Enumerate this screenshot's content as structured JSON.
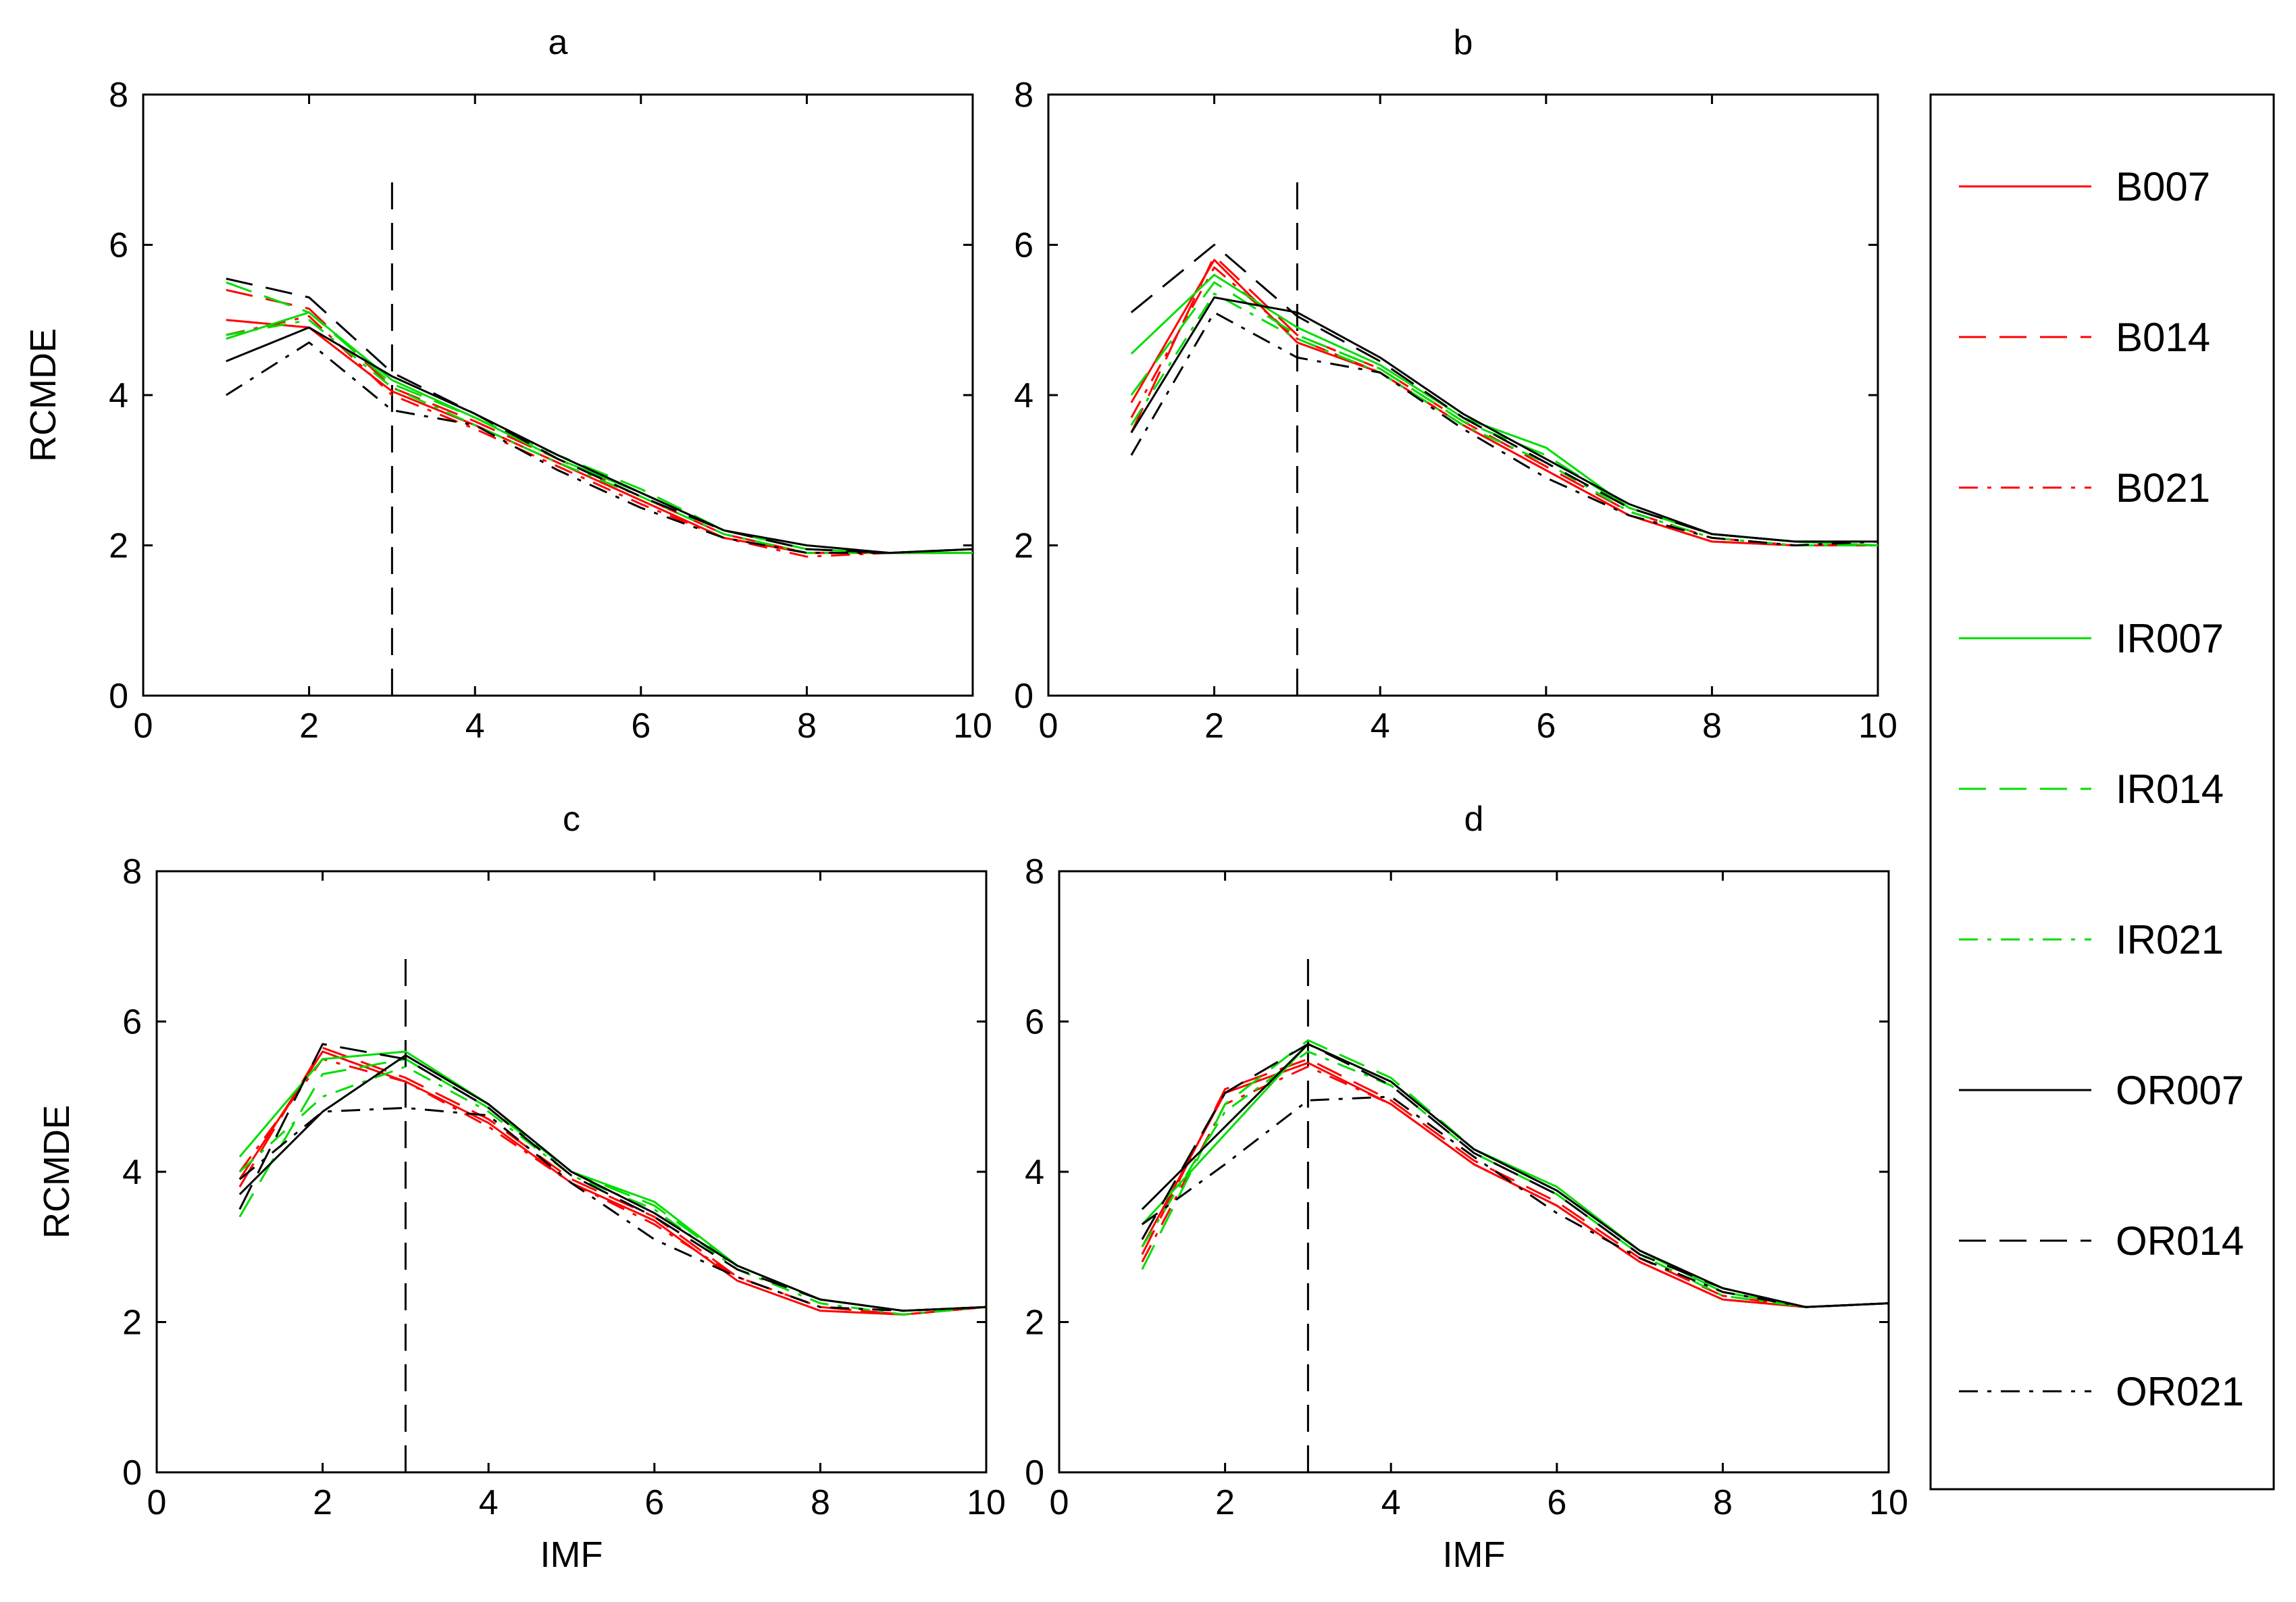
{
  "legend": {
    "position": "right",
    "entries": [
      {
        "name": "B007",
        "color": "#ff0000",
        "dash": "solid"
      },
      {
        "name": "B014",
        "color": "#ff0000",
        "dash": "dashed"
      },
      {
        "name": "B021",
        "color": "#ff0000",
        "dash": "dashdot"
      },
      {
        "name": "IR007",
        "color": "#00dd00",
        "dash": "solid"
      },
      {
        "name": "IR014",
        "color": "#00dd00",
        "dash": "dashed"
      },
      {
        "name": "IR021",
        "color": "#00dd00",
        "dash": "dashdot"
      },
      {
        "name": "OR007",
        "color": "#000000",
        "dash": "solid"
      },
      {
        "name": "OR014",
        "color": "#000000",
        "dash": "dashed"
      },
      {
        "name": "OR021",
        "color": "#000000",
        "dash": "dashdot"
      }
    ]
  },
  "chart_data": [
    {
      "type": "line",
      "title": "a",
      "xlabel": "",
      "ylabel": "RCMDE",
      "xlim": [
        0,
        10
      ],
      "ylim": [
        0,
        8
      ],
      "xticks": [
        0,
        2,
        4,
        6,
        8,
        10
      ],
      "yticks": [
        0,
        2,
        4,
        6,
        8
      ],
      "grid": false,
      "marker_line": {
        "x": 3,
        "y_range": [
          0,
          7
        ],
        "style": "dashed"
      },
      "x": [
        1,
        2,
        3,
        4,
        5,
        6,
        7,
        8,
        9,
        10
      ],
      "series": [
        {
          "name": "B007",
          "values": [
            5.0,
            4.9,
            4.05,
            3.6,
            3.1,
            2.6,
            2.1,
            1.9,
            1.9,
            1.9
          ]
        },
        {
          "name": "B014",
          "values": [
            5.4,
            5.15,
            4.1,
            3.65,
            3.15,
            2.65,
            2.15,
            1.9,
            1.9,
            1.9
          ]
        },
        {
          "name": "B021",
          "values": [
            4.8,
            5.05,
            4.0,
            3.55,
            3.05,
            2.55,
            2.1,
            1.85,
            1.9,
            1.9
          ]
        },
        {
          "name": "IR007",
          "values": [
            4.75,
            5.1,
            4.2,
            3.7,
            3.15,
            2.7,
            2.2,
            1.95,
            1.9,
            1.9
          ]
        },
        {
          "name": "IR014",
          "values": [
            5.5,
            5.1,
            4.15,
            3.7,
            3.2,
            2.75,
            2.2,
            1.95,
            1.9,
            1.9
          ]
        },
        {
          "name": "IR021",
          "values": [
            4.8,
            5.0,
            4.1,
            3.6,
            3.1,
            2.65,
            2.15,
            1.9,
            1.9,
            1.9
          ]
        },
        {
          "name": "OR007",
          "values": [
            4.45,
            4.9,
            4.25,
            3.75,
            3.2,
            2.7,
            2.2,
            2.0,
            1.9,
            1.95
          ]
        },
        {
          "name": "OR014",
          "values": [
            5.55,
            5.3,
            4.3,
            3.75,
            3.15,
            2.65,
            2.2,
            1.95,
            1.9,
            1.95
          ]
        },
        {
          "name": "OR021",
          "values": [
            4.0,
            4.7,
            3.8,
            3.6,
            3.0,
            2.5,
            2.1,
            1.9,
            1.9,
            1.95
          ]
        }
      ]
    },
    {
      "type": "line",
      "title": "b",
      "xlabel": "",
      "ylabel": "",
      "xlim": [
        0,
        10
      ],
      "ylim": [
        0,
        8
      ],
      "xticks": [
        0,
        2,
        4,
        6,
        8,
        10
      ],
      "yticks": [
        0,
        2,
        4,
        6,
        8
      ],
      "grid": false,
      "marker_line": {
        "x": 3,
        "y_range": [
          0,
          7
        ],
        "style": "dashed"
      },
      "x": [
        1,
        2,
        3,
        4,
        5,
        6,
        7,
        8,
        9,
        10
      ],
      "series": [
        {
          "name": "B007",
          "values": [
            3.9,
            5.8,
            4.7,
            4.3,
            3.6,
            3.0,
            2.4,
            2.05,
            2.0,
            2.0
          ]
        },
        {
          "name": "B014",
          "values": [
            3.5,
            5.85,
            4.8,
            4.35,
            3.65,
            3.05,
            2.45,
            2.1,
            2.0,
            2.0
          ]
        },
        {
          "name": "B021",
          "values": [
            3.7,
            5.7,
            4.75,
            4.3,
            3.6,
            3.0,
            2.4,
            2.05,
            2.0,
            2.0
          ]
        },
        {
          "name": "IR007",
          "values": [
            4.55,
            5.6,
            4.9,
            4.4,
            3.7,
            3.3,
            2.5,
            2.15,
            2.05,
            2.0
          ]
        },
        {
          "name": "IR014",
          "values": [
            4.0,
            5.5,
            4.8,
            4.35,
            3.65,
            3.2,
            2.5,
            2.15,
            2.05,
            2.0
          ]
        },
        {
          "name": "IR021",
          "values": [
            3.6,
            5.35,
            4.75,
            4.3,
            3.6,
            3.1,
            2.45,
            2.1,
            2.0,
            2.0
          ]
        },
        {
          "name": "OR007",
          "values": [
            3.5,
            5.3,
            5.1,
            4.5,
            3.75,
            3.15,
            2.55,
            2.15,
            2.05,
            2.05
          ]
        },
        {
          "name": "OR014",
          "values": [
            5.1,
            6.0,
            5.05,
            4.45,
            3.7,
            3.1,
            2.5,
            2.15,
            2.05,
            2.05
          ]
        },
        {
          "name": "OR021",
          "values": [
            3.2,
            5.1,
            4.5,
            4.3,
            3.55,
            2.9,
            2.4,
            2.1,
            2.0,
            2.05
          ]
        }
      ]
    },
    {
      "type": "line",
      "title": "c",
      "xlabel": "IMF",
      "ylabel": "RCMDE",
      "xlim": [
        0,
        10
      ],
      "ylim": [
        0,
        8
      ],
      "xticks": [
        0,
        2,
        4,
        6,
        8,
        10
      ],
      "yticks": [
        0,
        2,
        4,
        6,
        8
      ],
      "grid": false,
      "marker_line": {
        "x": 3,
        "y_range": [
          0,
          7
        ],
        "style": "dashed"
      },
      "x": [
        1,
        2,
        3,
        4,
        5,
        6,
        7,
        8,
        9,
        10
      ],
      "series": [
        {
          "name": "B007",
          "values": [
            3.9,
            5.6,
            5.2,
            4.65,
            3.85,
            3.35,
            2.55,
            2.15,
            2.1,
            2.2
          ]
        },
        {
          "name": "B014",
          "values": [
            3.8,
            5.65,
            5.25,
            4.7,
            3.9,
            3.4,
            2.6,
            2.2,
            2.1,
            2.2
          ]
        },
        {
          "name": "B021",
          "values": [
            4.0,
            5.5,
            5.2,
            4.6,
            3.85,
            3.3,
            2.6,
            2.2,
            2.1,
            2.2
          ]
        },
        {
          "name": "IR007",
          "values": [
            4.2,
            5.5,
            5.6,
            4.9,
            4.0,
            3.6,
            2.75,
            2.3,
            2.15,
            2.2
          ]
        },
        {
          "name": "IR014",
          "values": [
            3.4,
            5.3,
            5.5,
            4.85,
            4.0,
            3.55,
            2.75,
            2.3,
            2.15,
            2.2
          ]
        },
        {
          "name": "IR021",
          "values": [
            4.0,
            5.0,
            5.4,
            4.8,
            3.95,
            3.5,
            2.7,
            2.25,
            2.1,
            2.2
          ]
        },
        {
          "name": "OR007",
          "values": [
            3.7,
            4.8,
            5.55,
            4.9,
            4.0,
            3.45,
            2.75,
            2.3,
            2.15,
            2.2
          ]
        },
        {
          "name": "OR014",
          "values": [
            3.5,
            5.7,
            5.5,
            4.85,
            3.95,
            3.4,
            2.7,
            2.3,
            2.15,
            2.2
          ]
        },
        {
          "name": "OR021",
          "values": [
            3.9,
            4.8,
            4.85,
            4.75,
            3.85,
            3.1,
            2.6,
            2.2,
            2.15,
            2.2
          ]
        }
      ]
    },
    {
      "type": "line",
      "title": "d",
      "xlabel": "IMF",
      "ylabel": "",
      "xlim": [
        0,
        10
      ],
      "ylim": [
        0,
        8
      ],
      "xticks": [
        0,
        2,
        4,
        6,
        8,
        10
      ],
      "yticks": [
        0,
        2,
        4,
        6,
        8
      ],
      "grid": false,
      "marker_line": {
        "x": 3,
        "y_range": [
          0,
          7
        ],
        "style": "dashed"
      },
      "x": [
        1,
        2,
        3,
        4,
        5,
        6,
        7,
        8,
        9,
        10
      ],
      "series": [
        {
          "name": "B007",
          "values": [
            3.0,
            5.05,
            5.45,
            4.9,
            4.1,
            3.55,
            2.8,
            2.3,
            2.2,
            2.25
          ]
        },
        {
          "name": "B014",
          "values": [
            2.9,
            5.1,
            5.5,
            4.95,
            4.15,
            3.6,
            2.85,
            2.35,
            2.2,
            2.25
          ]
        },
        {
          "name": "B021",
          "values": [
            2.8,
            4.9,
            5.4,
            4.9,
            4.1,
            3.55,
            2.8,
            2.3,
            2.2,
            2.25
          ]
        },
        {
          "name": "IR007",
          "values": [
            3.3,
            4.5,
            5.7,
            5.2,
            4.3,
            3.8,
            2.95,
            2.4,
            2.2,
            2.25
          ]
        },
        {
          "name": "IR014",
          "values": [
            2.7,
            4.9,
            5.75,
            5.25,
            4.3,
            3.75,
            2.95,
            2.4,
            2.2,
            2.25
          ]
        },
        {
          "name": "IR021",
          "values": [
            3.0,
            4.8,
            5.6,
            5.15,
            4.25,
            3.7,
            2.9,
            2.35,
            2.2,
            2.25
          ]
        },
        {
          "name": "OR007",
          "values": [
            3.5,
            4.6,
            5.7,
            5.2,
            4.3,
            3.75,
            2.95,
            2.45,
            2.2,
            2.25
          ]
        },
        {
          "name": "OR014",
          "values": [
            3.1,
            5.05,
            5.7,
            5.15,
            4.25,
            3.7,
            2.9,
            2.45,
            2.2,
            2.25
          ]
        },
        {
          "name": "OR021",
          "values": [
            3.3,
            4.1,
            4.95,
            5.0,
            4.2,
            3.45,
            2.85,
            2.4,
            2.2,
            2.25
          ]
        }
      ]
    }
  ]
}
